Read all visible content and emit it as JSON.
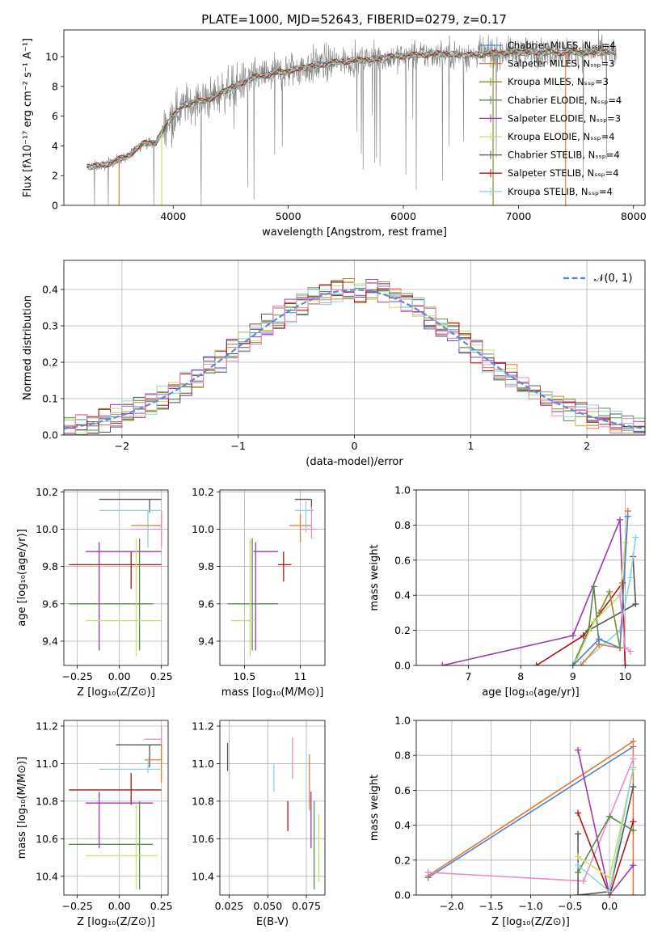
{
  "title": "PLATE=1000, MJD=52643, FIBERID=0279, z=0.17",
  "colors": {
    "Chabrier MILES": "#4f81d1",
    "Salpeter MILES": "#e07b39",
    "Kroupa MILES": "#8c8c2a",
    "Chabrier ELODIE": "#5a8a4e",
    "Salpeter ELODIE": "#9b37b8",
    "Kroupa ELODIE": "#c9e06a",
    "Chabrier STELIB": "#555555",
    "Salpeter STELIB": "#b01515",
    "Kroupa STELIB": "#88d6d8",
    "Pink": "#e88cc4",
    "Data": "#808080"
  },
  "chart_data": [
    {
      "id": "spectrum",
      "type": "line",
      "xlabel": "wavelength [Angstrom, rest frame]",
      "ylabel": "Flux [fλ10⁻¹⁷ erg cm⁻² s⁻¹ A⁻¹]",
      "xlim": [
        3050,
        8100
      ],
      "ylim": [
        0,
        11.8
      ],
      "xticks": [
        4000,
        5000,
        6000,
        7000,
        8000
      ],
      "yticks": [
        0,
        2,
        4,
        6,
        8,
        10
      ],
      "legend_position": "top-right",
      "legend": [
        "Chabrier MILES, Nₛₛₚ=4",
        "Salpeter MILES, Nₛₛₚ=3",
        "Kroupa MILES, Nₛₛₚ=3",
        "Chabrier ELODIE, Nₛₛₚ=4",
        "Salpeter ELODIE, Nₛₛₚ=3",
        "Kroupa ELODIE, Nₛₛₚ=4",
        "Chabrier STELIB, Nₛₛₚ=4",
        "Salpeter STELIB, Nₛₛₚ=4",
        "Kroupa STELIB, Nₛₛₚ=4"
      ],
      "legend_keys": [
        "Chabrier MILES",
        "Salpeter MILES",
        "Kroupa MILES",
        "Chabrier ELODIE",
        "Salpeter ELODIE",
        "Kroupa ELODIE",
        "Chabrier STELIB",
        "Salpeter STELIB",
        "Kroupa STELIB"
      ],
      "continuum": [
        [
          3250,
          2.6
        ],
        [
          3400,
          2.7
        ],
        [
          3600,
          3.3
        ],
        [
          3750,
          4.2
        ],
        [
          3850,
          4.2
        ],
        [
          3950,
          5.6
        ],
        [
          4100,
          6.8
        ],
        [
          4300,
          7.1
        ],
        [
          4500,
          7.9
        ],
        [
          4700,
          8.6
        ],
        [
          4900,
          8.9
        ],
        [
          5100,
          9.2
        ],
        [
          5300,
          9.5
        ],
        [
          5500,
          9.7
        ],
        [
          5700,
          9.8
        ],
        [
          5900,
          10.0
        ],
        [
          6100,
          10.1
        ],
        [
          6300,
          10.2
        ],
        [
          6600,
          10.1
        ],
        [
          6900,
          10.3
        ],
        [
          7200,
          10.3
        ],
        [
          7500,
          10.3
        ],
        [
          7850,
          10.3
        ]
      ],
      "model_drops": [
        {
          "x": 3530,
          "color": "#e07b39"
        },
        {
          "x": 3900,
          "color": "#c9e06a"
        },
        {
          "x": 6780,
          "color": "#8c8c2a"
        },
        {
          "x": 7410,
          "color": "#e07b39"
        }
      ]
    },
    {
      "id": "residuals",
      "type": "histogram",
      "xlabel": "(data-model)/error",
      "ylabel": "Normed distribution",
      "xlim": [
        -2.5,
        2.5
      ],
      "ylim": [
        0,
        0.48
      ],
      "xticks": [
        -2,
        -1,
        0,
        1,
        2
      ],
      "yticks": [
        0,
        0.1,
        0.2,
        0.3,
        0.4
      ],
      "grid": true,
      "legend_position": "top-right",
      "legend": [
        "𝒩(0, 1)"
      ],
      "bin_width": 0.1
    },
    {
      "id": "z-age",
      "type": "errorbar",
      "xlabel": "Z [log₁₀(Z/Z⊙)]",
      "ylabel": "age  [log₁₀(age/yr)]",
      "xlim": [
        -0.33,
        0.29
      ],
      "ylim": [
        9.27,
        10.21
      ],
      "xticks": [
        -0.25,
        0.0,
        0.25
      ],
      "xticklabels": [
        "−0.25",
        "0.00",
        "0.25"
      ],
      "yticks": [
        9.4,
        9.6,
        9.8,
        10.0,
        10.2
      ],
      "grid": true,
      "points": [
        {
          "c": "Chabrier STELIB",
          "x": 0.18,
          "xe": [
            -0.12,
            0.25
          ],
          "y": 10.16,
          "ye": [
            10.09,
            10.16
          ]
        },
        {
          "c": "Kroupa STELIB",
          "x": 0.17,
          "xe": [
            -0.12,
            0.25
          ],
          "y": 10.1,
          "ye": [
            9.9,
            10.1
          ]
        },
        {
          "c": "Salpeter MILES",
          "x": 0.25,
          "xe": [
            0.07,
            0.25
          ],
          "y": 10.02,
          "ye": [
            9.95,
            10.1
          ]
        },
        {
          "c": "Pink",
          "x": 0.25,
          "xe": [
            0.07,
            0.25
          ],
          "y": 10.0,
          "ye": [
            9.9,
            10.1
          ]
        },
        {
          "c": "Salpeter ELODIE",
          "x": -0.12,
          "xe": [
            -0.2,
            0.25
          ],
          "y": 9.88,
          "ye": [
            9.35,
            9.93
          ]
        },
        {
          "c": "Salpeter STELIB",
          "x": 0.07,
          "xe": [
            -0.3,
            0.25
          ],
          "y": 9.81,
          "ye": [
            9.68,
            9.88
          ]
        },
        {
          "c": "Chabrier ELODIE",
          "x": 0.12,
          "xe": [
            -0.3,
            0.2
          ],
          "y": 9.6,
          "ye": [
            9.35,
            9.95
          ]
        },
        {
          "c": "Kroupa ELODIE",
          "x": 0.1,
          "xe": [
            -0.2,
            0.25
          ],
          "y": 9.51,
          "ye": [
            9.32,
            9.95
          ]
        }
      ]
    },
    {
      "id": "mass-age",
      "type": "errorbar",
      "xlabel": "mass [log₁₀(M/M⊙)]",
      "xlim": [
        10.28,
        11.22
      ],
      "ylim": [
        9.27,
        10.21
      ],
      "xticks": [
        10.5,
        11.0
      ],
      "yticks": [
        9.4,
        9.6,
        9.8,
        10.0,
        10.2
      ],
      "grid": true,
      "points": [
        {
          "c": "Chabrier STELIB",
          "x": 11.1,
          "xe": [
            10.95,
            11.1
          ],
          "y": 10.16,
          "ye": [
            10.09,
            10.16
          ]
        },
        {
          "c": "Kroupa STELIB",
          "x": 11.05,
          "xe": [
            10.95,
            11.12
          ],
          "y": 10.1,
          "ye": [
            9.98,
            10.15
          ]
        },
        {
          "c": "Salpeter MILES",
          "x": 11.0,
          "xe": [
            10.9,
            11.1
          ],
          "y": 10.02,
          "ye": [
            9.93,
            10.08
          ]
        },
        {
          "c": "Pink",
          "x": 11.1,
          "xe": [
            11.0,
            11.15
          ],
          "y": 10.0,
          "ye": [
            9.95,
            10.12
          ]
        },
        {
          "c": "Salpeter ELODIE",
          "x": 10.6,
          "xe": [
            10.58,
            10.8
          ],
          "y": 9.88,
          "ye": [
            9.35,
            9.93
          ]
        },
        {
          "c": "Salpeter STELIB",
          "x": 10.85,
          "xe": [
            10.8,
            10.92
          ],
          "y": 9.81,
          "ye": [
            9.72,
            9.88
          ]
        },
        {
          "c": "Chabrier ELODIE",
          "x": 10.57,
          "xe": [
            10.35,
            10.8
          ],
          "y": 9.6,
          "ye": [
            9.35,
            9.95
          ]
        },
        {
          "c": "Kroupa ELODIE",
          "x": 10.55,
          "xe": [
            10.38,
            10.6
          ],
          "y": 9.51,
          "ye": [
            9.32,
            9.95
          ]
        }
      ]
    },
    {
      "id": "age-weight",
      "type": "line",
      "xlabel": "age  [log₁₀(age/yr)]",
      "ylabel": "mass weight",
      "xlim": [
        6.0,
        10.38
      ],
      "ylim": [
        0,
        1.0
      ],
      "xticks": [
        7,
        8,
        9,
        10
      ],
      "yticks": [
        0,
        0.2,
        0.4,
        0.6,
        0.8,
        1.0
      ],
      "grid": true,
      "series": [
        {
          "c": "Salpeter ELODIE",
          "x": [
            6.5,
            9.0,
            9.9,
            10.0
          ],
          "y": [
            0.0,
            0.17,
            0.83,
            0.0
          ]
        },
        {
          "c": "Salpeter STELIB",
          "x": [
            8.3,
            9.2,
            9.95,
            10.0
          ],
          "y": [
            0.0,
            0.17,
            0.47,
            0.0
          ]
        },
        {
          "c": "Chabrier STELIB",
          "x": [
            9.0,
            9.3,
            10.2,
            10.15
          ],
          "y": [
            0.0,
            0.2,
            0.35,
            0.62
          ]
        },
        {
          "c": "Chabrier ELODIE",
          "x": [
            9.0,
            9.3,
            9.4,
            9.5
          ],
          "y": [
            0.0,
            0.2,
            0.45,
            0.12
          ]
        },
        {
          "c": "Kroupa ELODIE",
          "x": [
            9.05,
            9.4,
            9.9,
            10.0
          ],
          "y": [
            0.02,
            0.25,
            0.4,
            0.7
          ]
        },
        {
          "c": "Kroupa STELIB",
          "x": [
            9.2,
            9.9,
            10.1,
            10.2
          ],
          "y": [
            0.02,
            0.2,
            0.5,
            0.73
          ]
        },
        {
          "c": "Salpeter MILES",
          "x": [
            9.15,
            9.5,
            9.9,
            10.05
          ],
          "y": [
            0.0,
            0.12,
            0.1,
            0.88
          ]
        },
        {
          "c": "Chabrier MILES",
          "x": [
            9.0,
            9.5,
            9.9,
            10.05
          ],
          "y": [
            0.0,
            0.15,
            0.1,
            0.85
          ]
        },
        {
          "c": "Pink",
          "x": [
            9.9,
            10.0,
            10.1
          ],
          "y": [
            0.4,
            0.1,
            0.08
          ]
        },
        {
          "c": "Kroupa MILES",
          "x": [
            9.5,
            9.7,
            9.9
          ],
          "y": [
            0.3,
            0.42,
            0.1
          ]
        }
      ]
    },
    {
      "id": "z-mass",
      "type": "errorbar",
      "xlabel": "Z [log₁₀(Z/Z⊙)]",
      "ylabel": "mass [log₁₀(M/M⊙)]",
      "xlim": [
        -0.33,
        0.29
      ],
      "ylim": [
        10.3,
        11.23
      ],
      "xticks": [
        -0.25,
        0.0,
        0.25
      ],
      "xticklabels": [
        "−0.25",
        "0.00",
        "0.25"
      ],
      "yticks": [
        10.4,
        10.6,
        10.8,
        11.0,
        11.2
      ],
      "grid": true,
      "points": [
        {
          "c": "Pink",
          "x": 0.25,
          "xe": [
            0.15,
            0.25
          ],
          "y": 11.13,
          "ye": [
            11.03,
            11.2
          ]
        },
        {
          "c": "Chabrier STELIB",
          "x": 0.18,
          "xe": [
            -0.02,
            0.25
          ],
          "y": 11.1,
          "ye": [
            10.98,
            11.1
          ]
        },
        {
          "c": "Salpeter MILES",
          "x": 0.25,
          "xe": [
            0.15,
            0.25
          ],
          "y": 11.02,
          "ye": [
            10.9,
            11.1
          ]
        },
        {
          "c": "Kroupa STELIB",
          "x": 0.17,
          "xe": [
            -0.12,
            0.25
          ],
          "y": 10.97,
          "ye": [
            10.95,
            11.03
          ]
        },
        {
          "c": "Salpeter STELIB",
          "x": 0.07,
          "xe": [
            -0.3,
            0.25
          ],
          "y": 10.86,
          "ye": [
            10.78,
            10.95
          ]
        },
        {
          "c": "Salpeter ELODIE",
          "x": -0.12,
          "xe": [
            -0.2,
            0.2
          ],
          "y": 10.79,
          "ye": [
            10.55,
            10.85
          ]
        },
        {
          "c": "Chabrier ELODIE",
          "x": 0.12,
          "xe": [
            -0.3,
            0.2
          ],
          "y": 10.57,
          "ye": [
            10.33,
            10.8
          ]
        },
        {
          "c": "Kroupa ELODIE",
          "x": 0.1,
          "xe": [
            -0.2,
            0.23
          ],
          "y": 10.51,
          "ye": [
            10.33,
            10.79
          ]
        }
      ]
    },
    {
      "id": "ebv-mass",
      "type": "errorbar",
      "xlabel": "E(B-V)",
      "xlim": [
        0.019,
        0.087
      ],
      "ylim": [
        10.3,
        11.23
      ],
      "xticks": [
        0.025,
        0.05,
        0.075
      ],
      "xticklabels": [
        "0.025",
        "0.050",
        "0.075"
      ],
      "yticks": [
        10.4,
        10.6,
        10.8,
        11.0,
        11.2
      ],
      "grid": true,
      "points": [
        {
          "c": "Chabrier STELIB",
          "x": 0.024,
          "y": 11.03,
          "ye": [
            10.96,
            11.11
          ]
        },
        {
          "c": "Kroupa STELIB",
          "x": 0.054,
          "y": 10.92,
          "ye": [
            10.85,
            11.0
          ]
        },
        {
          "c": "Pink",
          "x": 0.066,
          "y": 11.05,
          "ye": [
            10.92,
            11.14
          ]
        },
        {
          "c": "Salpeter STELIB",
          "x": 0.063,
          "y": 10.72,
          "ye": [
            10.64,
            10.8
          ]
        },
        {
          "c": "Salpeter MILES",
          "x": 0.077,
          "y": 10.9,
          "ye": [
            10.75,
            11.05
          ]
        },
        {
          "c": "Salpeter ELODIE",
          "x": 0.078,
          "y": 10.7,
          "ye": [
            10.55,
            10.85
          ]
        },
        {
          "c": "Chabrier ELODIE",
          "x": 0.08,
          "y": 10.57,
          "ye": [
            10.33,
            10.8
          ]
        },
        {
          "c": "Kroupa ELODIE",
          "x": 0.083,
          "y": 10.55,
          "ye": [
            10.37,
            10.73
          ]
        }
      ]
    },
    {
      "id": "z-weight",
      "type": "line",
      "xlabel": "Z [log₁₀(Z/Z⊙)]",
      "ylabel": "mass weight",
      "xlim": [
        -2.45,
        0.45
      ],
      "ylim": [
        0,
        1.0
      ],
      "xticks": [
        -2.0,
        -1.5,
        -1.0,
        -0.5,
        0.0
      ],
      "xticklabels": [
        "−2.0",
        "−1.5",
        "−1.0",
        "−0.5",
        "0.0"
      ],
      "yticks": [
        0,
        0.2,
        0.4,
        0.6,
        0.8,
        1.0
      ],
      "grid": true,
      "series": [
        {
          "c": "Chabrier MILES",
          "x": [
            -2.3,
            0.3
          ],
          "y": [
            0.1,
            0.85
          ]
        },
        {
          "c": "Salpeter MILES",
          "x": [
            -2.3,
            0.3,
            0.3
          ],
          "y": [
            0.11,
            0.88,
            0.0
          ]
        },
        {
          "c": "Pink",
          "x": [
            -2.3,
            -0.33,
            0.3
          ],
          "y": [
            0.13,
            0.08,
            0.78
          ]
        },
        {
          "c": "Salpeter ELODIE",
          "x": [
            -0.4,
            0.0,
            0.3
          ],
          "y": [
            0.83,
            0.0,
            0.17
          ]
        },
        {
          "c": "Salpeter STELIB",
          "x": [
            -0.4,
            0.0,
            0.3
          ],
          "y": [
            0.47,
            0.0,
            0.42
          ]
        },
        {
          "c": "Chabrier STELIB",
          "x": [
            -0.4,
            -0.4,
            0.0,
            0.3
          ],
          "y": [
            0.35,
            0.0,
            0.02,
            0.62
          ]
        },
        {
          "c": "Chabrier ELODIE",
          "x": [
            -0.4,
            0.0,
            0.3
          ],
          "y": [
            0.13,
            0.45,
            0.37
          ]
        },
        {
          "c": "Kroupa ELODIE",
          "x": [
            -0.4,
            0.0,
            0.3
          ],
          "y": [
            0.22,
            0.1,
            0.72
          ]
        },
        {
          "c": "Kroupa STELIB",
          "x": [
            -0.4,
            0.0,
            0.3
          ],
          "y": [
            0.17,
            0.02,
            0.73
          ]
        }
      ]
    }
  ]
}
